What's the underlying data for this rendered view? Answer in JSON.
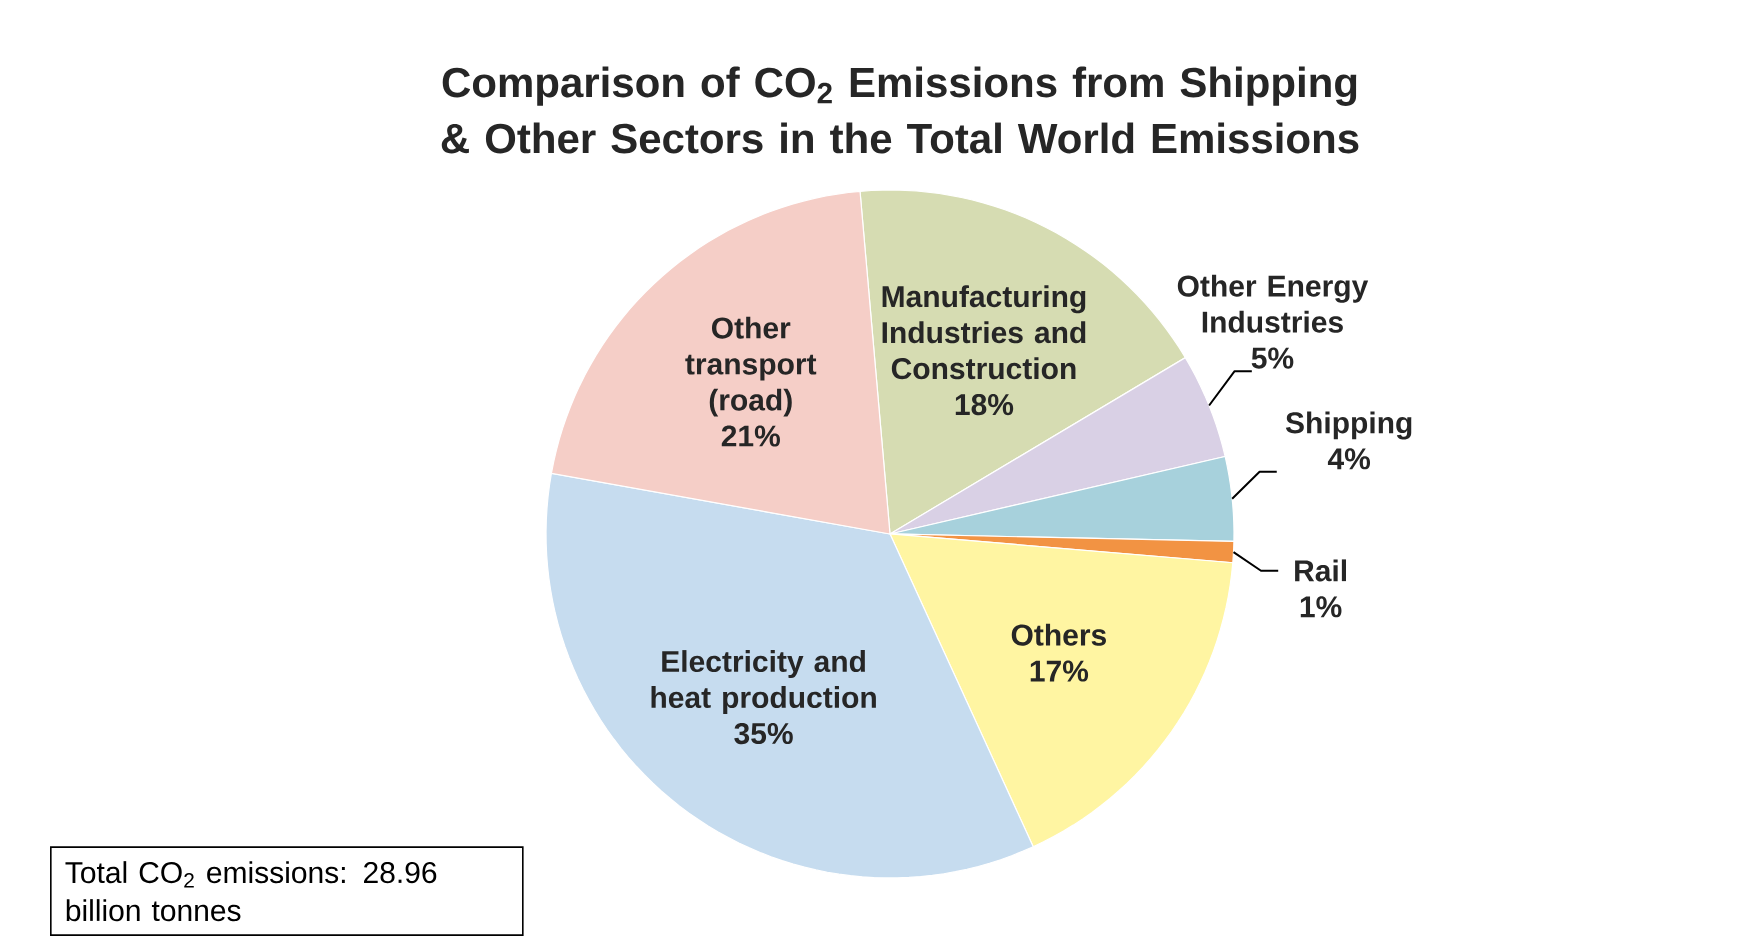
{
  "chart_data": {
    "type": "pie",
    "title": "Comparison of CO$_{2}$ Emissions from Shipping & Other Sectors in the Total World Emissions",
    "categories": [
      "Manufacturing Industries and Construction",
      "Other Energy Industries",
      "Shipping",
      "Rail",
      "Others",
      "Electricity and heat production",
      "Other transport (road)"
    ],
    "values": [
      18,
      5,
      4,
      1,
      17,
      35,
      21
    ],
    "value_labels": [
      "18%",
      "5%",
      "4%",
      "1%",
      "17%",
      "35%",
      "21%"
    ],
    "colors": [
      "#d6dcb2",
      "#d9d0e5",
      "#a7d1dc",
      "#f29343",
      "#fff5a2",
      "#c6dcef",
      "#f5cec7"
    ],
    "legend": false,
    "annotations": [
      "Total CO$_{2}$ emissions: 28.96 billion tonnes"
    ]
  }
}
